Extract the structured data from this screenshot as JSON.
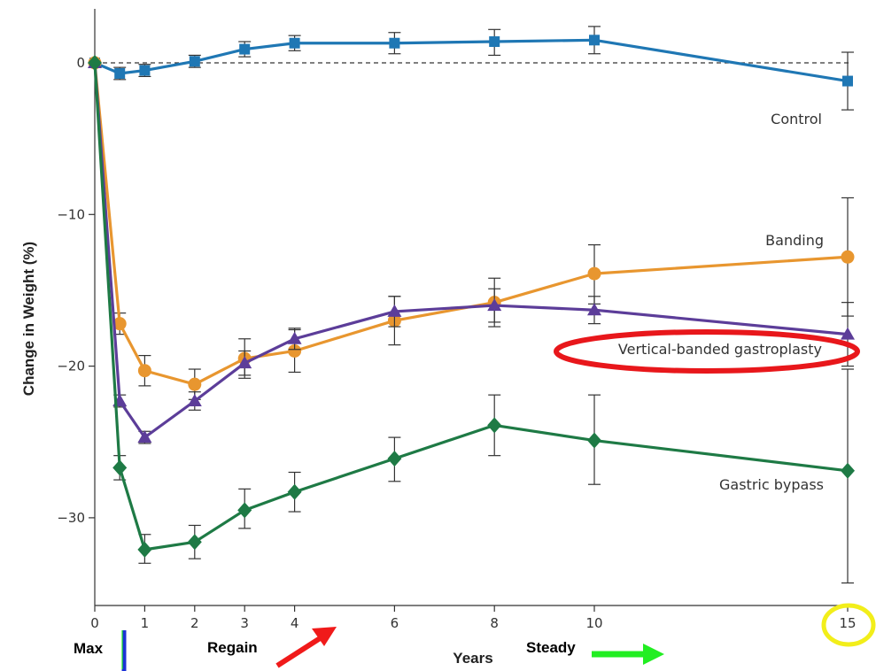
{
  "chart_data": {
    "type": "line",
    "ylabel": "Change in Weight (%)",
    "xlabel": "Years",
    "ylim": [
      -36,
      4
    ],
    "y_ticks": [
      0,
      -10,
      -20,
      -30
    ],
    "y_tick_labels": [
      "0",
      "−10",
      "−20",
      "−30"
    ],
    "x_ticks": [
      0,
      1,
      2,
      3,
      4,
      6,
      8,
      10,
      15
    ],
    "grid": false,
    "baseline": 0,
    "series": [
      {
        "name": "Control",
        "color": "#1f77b4",
        "marker": "square",
        "points": [
          {
            "x": 0,
            "y": 0,
            "lo": 0,
            "hi": 0
          },
          {
            "x": 0.5,
            "y": -0.7,
            "lo": -1.1,
            "hi": -0.3
          },
          {
            "x": 1,
            "y": -0.5,
            "lo": -0.9,
            "hi": -0.1
          },
          {
            "x": 2,
            "y": 0.1,
            "lo": -0.3,
            "hi": 0.5
          },
          {
            "x": 3,
            "y": 0.9,
            "lo": 0.4,
            "hi": 1.4
          },
          {
            "x": 4,
            "y": 1.3,
            "lo": 0.8,
            "hi": 1.8
          },
          {
            "x": 6,
            "y": 1.3,
            "lo": 0.6,
            "hi": 2.0
          },
          {
            "x": 8,
            "y": 1.4,
            "lo": 0.5,
            "hi": 2.2
          },
          {
            "x": 10,
            "y": 1.5,
            "lo": 0.6,
            "hi": 2.4
          },
          {
            "x": 15,
            "y": -1.2,
            "lo": -3.1,
            "hi": 0.7
          }
        ]
      },
      {
        "name": "Banding",
        "color": "#e8962f",
        "marker": "circle",
        "points": [
          {
            "x": 0,
            "y": 0,
            "lo": 0,
            "hi": 0
          },
          {
            "x": 0.5,
            "y": -17.2,
            "lo": -17.9,
            "hi": -16.5
          },
          {
            "x": 1,
            "y": -20.3,
            "lo": -21.3,
            "hi": -19.3
          },
          {
            "x": 2,
            "y": -21.2,
            "lo": -22.2,
            "hi": -20.2
          },
          {
            "x": 3,
            "y": -19.5,
            "lo": -20.8,
            "hi": -18.2
          },
          {
            "x": 4,
            "y": -19.0,
            "lo": -20.4,
            "hi": -17.6
          },
          {
            "x": 6,
            "y": -17.0,
            "lo": -18.6,
            "hi": -15.4
          },
          {
            "x": 8,
            "y": -15.8,
            "lo": -17.4,
            "hi": -14.2
          },
          {
            "x": 10,
            "y": -13.9,
            "lo": -15.9,
            "hi": -12.0
          },
          {
            "x": 15,
            "y": -12.8,
            "lo": -16.7,
            "hi": -8.9
          }
        ]
      },
      {
        "name": "Vertical-banded gastroplasty",
        "color": "#5c3d99",
        "marker": "triangle",
        "points": [
          {
            "x": 0,
            "y": 0,
            "lo": 0,
            "hi": 0
          },
          {
            "x": 0.5,
            "y": -22.3,
            "lo": -22.7,
            "hi": -21.9
          },
          {
            "x": 1,
            "y": -24.7,
            "lo": -25.1,
            "hi": -24.3
          },
          {
            "x": 2,
            "y": -22.3,
            "lo": -22.9,
            "hi": -21.7
          },
          {
            "x": 3,
            "y": -19.8,
            "lo": -20.6,
            "hi": -19.0
          },
          {
            "x": 4,
            "y": -18.2,
            "lo": -18.9,
            "hi": -17.5
          },
          {
            "x": 6,
            "y": -16.4,
            "lo": -17.4,
            "hi": -15.4
          },
          {
            "x": 8,
            "y": -16.0,
            "lo": -17.1,
            "hi": -14.9
          },
          {
            "x": 10,
            "y": -16.3,
            "lo": -17.2,
            "hi": -15.4
          },
          {
            "x": 15,
            "y": -17.9,
            "lo": -20.0,
            "hi": -15.8
          }
        ]
      },
      {
        "name": "Gastric bypass",
        "color": "#1e7a45",
        "marker": "diamond",
        "points": [
          {
            "x": 0,
            "y": 0,
            "lo": 0,
            "hi": 0
          },
          {
            "x": 0.5,
            "y": -26.7,
            "lo": -27.5,
            "hi": -25.9
          },
          {
            "x": 1,
            "y": -32.1,
            "lo": -33.0,
            "hi": -31.1
          },
          {
            "x": 2,
            "y": -31.6,
            "lo": -32.7,
            "hi": -30.5
          },
          {
            "x": 3,
            "y": -29.5,
            "lo": -30.7,
            "hi": -28.1
          },
          {
            "x": 4,
            "y": -28.3,
            "lo": -29.6,
            "hi": -27.0
          },
          {
            "x": 6,
            "y": -26.1,
            "lo": -27.6,
            "hi": -24.7
          },
          {
            "x": 8,
            "y": -23.9,
            "lo": -25.9,
            "hi": -21.9
          },
          {
            "x": 10,
            "y": -24.9,
            "lo": -27.8,
            "hi": -21.9
          },
          {
            "x": 15,
            "y": -26.9,
            "lo": -34.3,
            "hi": -20.2
          }
        ]
      }
    ],
    "annotations": {
      "max": "Max",
      "regain": "Regain",
      "steady": "Steady",
      "highlight_color": "#e8171b",
      "circle_color": "#f2ee1a",
      "arrow_red": "#f01a1a",
      "arrow_green": "#22ee22",
      "arrow_blue": "#1c33d6"
    }
  }
}
